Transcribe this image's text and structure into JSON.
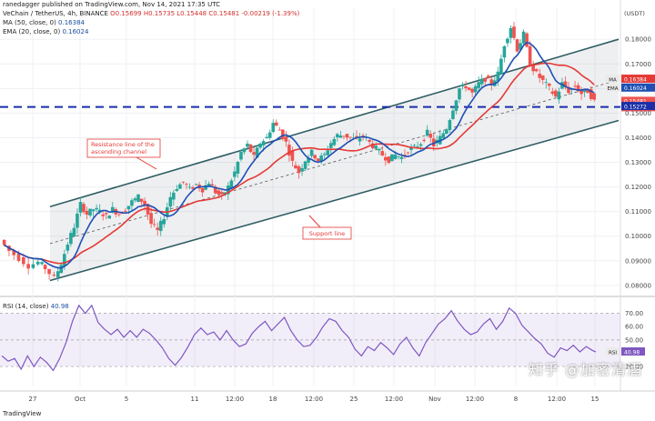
{
  "header": {
    "published_by": "ranedagger published on TradingView.com, Nov 14, 2021 17:35 UTC",
    "symbol_line": "VeChain / TetherUS, 4h, BINANCE",
    "ohlc": "O0.15699  H0.15735  L0.15448  C0.15481  -0.00219 (-1.39%)",
    "ma_label": "MA (50, close, 0)",
    "ma_value": "0.16384",
    "ema_label": "EMA (20, close, 0)",
    "ema_value": "0.16024",
    "rsi_label": "RSI (14, close)",
    "rsi_value": "40.98",
    "currency": "USDT"
  },
  "annotations": {
    "resistance": [
      "Resistance line of the",
      "ascending channel"
    ],
    "support": "Support line"
  },
  "watermark": "知乎 @加密清酒",
  "footer": "TradingView",
  "colors": {
    "up": "#26a69a",
    "down": "#ef5350",
    "ma": "#e53935",
    "ema": "#1e4fb4",
    "rsi": "#7e57c2",
    "channel": "#2f5d64",
    "level": "#1a2fa8",
    "annotation": "#e53935"
  },
  "chart_data": [
    {
      "type": "candlestick",
      "title": "VeChain / TetherUS, 4h, BINANCE",
      "x_tick_labels": [
        "27",
        "Oct",
        "5",
        "11",
        "12:00",
        "18",
        "12:00",
        "25",
        "12:00",
        "Nov",
        "12:00",
        "8",
        "12:00",
        "15"
      ],
      "y_tick_labels": [
        "0.18000",
        "0.17000",
        "0.16000",
        "0.15000",
        "0.14000",
        "0.13000",
        "0.12000",
        "0.11000",
        "0.10000",
        "0.09000",
        "0.08000"
      ],
      "ylim": [
        0.077,
        0.193
      ],
      "series": [
        {
          "name": "MA",
          "label": "MA (50, close, 0)",
          "last": 0.16384
        },
        {
          "name": "EMA",
          "label": "EMA (20, close, 0)",
          "last": 0.16024
        }
      ],
      "price_labels": [
        {
          "tag": "MA",
          "value": "0.16384"
        },
        {
          "tag": "EMA",
          "value": "0.16024"
        },
        {
          "tag": "",
          "value": "0.15481",
          "sub": "00:24:54"
        },
        {
          "tag": "",
          "value": "0.15272"
        }
      ],
      "horizontal_level": 0.1525,
      "channel": {
        "upper": [
          [
            0.0,
            0.112
          ],
          [
            1.0,
            0.18
          ]
        ],
        "lower": [
          [
            0.0,
            0.082
          ],
          [
            1.0,
            0.147
          ]
        ],
        "middle": [
          [
            0.0,
            0.097
          ],
          [
            1.0,
            0.1635
          ]
        ]
      },
      "candles_close_path": [
        [
          0.0,
          0.0985
        ],
        [
          0.03,
          0.094
        ],
        [
          0.06,
          0.091
        ],
        [
          0.09,
          0.088
        ],
        [
          0.12,
          0.0895
        ],
        [
          0.14,
          0.087
        ],
        [
          0.17,
          0.083
        ],
        [
          0.19,
          0.089
        ],
        [
          0.21,
          0.097
        ],
        [
          0.23,
          0.104
        ],
        [
          0.25,
          0.113
        ],
        [
          0.27,
          0.109
        ],
        [
          0.29,
          0.111
        ],
        [
          0.31,
          0.11
        ],
        [
          0.33,
          0.108
        ],
        [
          0.35,
          0.111
        ],
        [
          0.37,
          0.109
        ],
        [
          0.39,
          0.111
        ],
        [
          0.41,
          0.114
        ],
        [
          0.43,
          0.116
        ],
        [
          0.45,
          0.113
        ],
        [
          0.47,
          0.105
        ],
        [
          0.49,
          0.102
        ],
        [
          0.51,
          0.108
        ],
        [
          0.53,
          0.116
        ],
        [
          0.55,
          0.12
        ],
        [
          0.57,
          0.122
        ],
        [
          0.59,
          0.119
        ],
        [
          0.61,
          0.121
        ],
        [
          0.63,
          0.119
        ],
        [
          0.65,
          0.122
        ],
        [
          0.67,
          0.118
        ],
        [
          0.69,
          0.116
        ],
        [
          0.71,
          0.12
        ],
        [
          0.73,
          0.126
        ],
        [
          0.75,
          0.134
        ],
        [
          0.77,
          0.137
        ],
        [
          0.79,
          0.132
        ],
        [
          0.81,
          0.138
        ],
        [
          0.83,
          0.14
        ],
        [
          0.85,
          0.146
        ],
        [
          0.87,
          0.143
        ],
        [
          0.89,
          0.138
        ],
        [
          0.91,
          0.13
        ],
        [
          0.93,
          0.126
        ],
        [
          0.95,
          0.131
        ],
        [
          0.97,
          0.134
        ],
        [
          0.99,
          0.131
        ],
        [
          1.01,
          0.133
        ],
        [
          1.03,
          0.138
        ],
        [
          1.05,
          0.141
        ],
        [
          1.07,
          0.141
        ],
        [
          1.09,
          0.14
        ],
        [
          1.11,
          0.139
        ],
        [
          1.13,
          0.141
        ],
        [
          1.15,
          0.138
        ],
        [
          1.17,
          0.1355
        ],
        [
          1.19,
          0.133
        ],
        [
          1.21,
          0.131
        ],
        [
          1.23,
          0.133
        ],
        [
          1.25,
          0.132
        ],
        [
          1.27,
          0.135
        ],
        [
          1.29,
          0.136
        ],
        [
          1.31,
          0.138
        ],
        [
          1.33,
          0.142
        ],
        [
          1.35,
          0.137
        ],
        [
          1.37,
          0.14
        ],
        [
          1.39,
          0.144
        ],
        [
          1.41,
          0.152
        ],
        [
          1.43,
          0.16
        ],
        [
          1.45,
          0.161
        ],
        [
          1.47,
          0.158
        ],
        [
          1.49,
          0.162
        ],
        [
          1.51,
          0.164
        ],
        [
          1.53,
          0.162
        ],
        [
          1.55,
          0.166
        ],
        [
          1.57,
          0.178
        ],
        [
          1.59,
          0.185
        ],
        [
          1.61,
          0.176
        ],
        [
          1.63,
          0.182
        ],
        [
          1.65,
          0.17
        ],
        [
          1.67,
          0.166
        ],
        [
          1.69,
          0.163
        ],
        [
          1.71,
          0.16
        ],
        [
          1.73,
          0.1565
        ],
        [
          1.75,
          0.162
        ],
        [
          1.77,
          0.159
        ],
        [
          1.79,
          0.161
        ],
        [
          1.81,
          0.158
        ],
        [
          1.83,
          0.159
        ],
        [
          1.85,
          0.1548
        ]
      ],
      "x_span": 1.85
    },
    {
      "type": "line",
      "title": "RSI (14, close)",
      "series_name": "RSI",
      "y_tick_labels": [
        "70.00",
        "60.00",
        "50.00",
        "40.00",
        "30.00"
      ],
      "ylim": [
        15,
        80
      ],
      "band": [
        30,
        70
      ],
      "midline": 50,
      "last": 40.98,
      "points": [
        [
          0.0,
          38
        ],
        [
          0.02,
          34
        ],
        [
          0.04,
          36
        ],
        [
          0.06,
          28
        ],
        [
          0.08,
          38
        ],
        [
          0.1,
          30
        ],
        [
          0.12,
          37
        ],
        [
          0.14,
          33
        ],
        [
          0.16,
          27
        ],
        [
          0.18,
          36
        ],
        [
          0.2,
          48
        ],
        [
          0.22,
          64
        ],
        [
          0.24,
          76
        ],
        [
          0.26,
          70
        ],
        [
          0.28,
          76
        ],
        [
          0.3,
          63
        ],
        [
          0.32,
          58
        ],
        [
          0.34,
          54
        ],
        [
          0.36,
          58
        ],
        [
          0.38,
          52
        ],
        [
          0.4,
          57
        ],
        [
          0.42,
          52
        ],
        [
          0.44,
          58
        ],
        [
          0.46,
          55
        ],
        [
          0.48,
          50
        ],
        [
          0.5,
          44
        ],
        [
          0.52,
          36
        ],
        [
          0.54,
          31
        ],
        [
          0.56,
          37
        ],
        [
          0.58,
          45
        ],
        [
          0.6,
          54
        ],
        [
          0.62,
          59
        ],
        [
          0.64,
          54
        ],
        [
          0.66,
          56
        ],
        [
          0.68,
          50
        ],
        [
          0.7,
          57
        ],
        [
          0.72,
          50
        ],
        [
          0.74,
          45
        ],
        [
          0.76,
          47
        ],
        [
          0.78,
          55
        ],
        [
          0.8,
          60
        ],
        [
          0.82,
          64
        ],
        [
          0.84,
          57
        ],
        [
          0.86,
          62
        ],
        [
          0.88,
          67
        ],
        [
          0.9,
          57
        ],
        [
          0.92,
          50
        ],
        [
          0.94,
          45
        ],
        [
          0.96,
          46
        ],
        [
          0.98,
          52
        ],
        [
          1.0,
          60
        ],
        [
          1.02,
          66
        ],
        [
          1.04,
          64
        ],
        [
          1.06,
          57
        ],
        [
          1.08,
          52
        ],
        [
          1.1,
          43
        ],
        [
          1.12,
          38
        ],
        [
          1.14,
          45
        ],
        [
          1.16,
          42
        ],
        [
          1.18,
          48
        ],
        [
          1.2,
          44
        ],
        [
          1.22,
          39
        ],
        [
          1.24,
          47
        ],
        [
          1.26,
          52
        ],
        [
          1.28,
          44
        ],
        [
          1.3,
          38
        ],
        [
          1.32,
          48
        ],
        [
          1.34,
          55
        ],
        [
          1.36,
          62
        ],
        [
          1.38,
          66
        ],
        [
          1.4,
          72
        ],
        [
          1.42,
          64
        ],
        [
          1.44,
          58
        ],
        [
          1.46,
          54
        ],
        [
          1.48,
          56
        ],
        [
          1.5,
          62
        ],
        [
          1.52,
          66
        ],
        [
          1.54,
          58
        ],
        [
          1.56,
          64
        ],
        [
          1.58,
          74
        ],
        [
          1.6,
          70
        ],
        [
          1.62,
          61
        ],
        [
          1.64,
          56
        ],
        [
          1.66,
          51
        ],
        [
          1.68,
          47
        ],
        [
          1.7,
          40
        ],
        [
          1.72,
          37
        ],
        [
          1.74,
          44
        ],
        [
          1.76,
          42
        ],
        [
          1.78,
          46
        ],
        [
          1.8,
          41
        ],
        [
          1.82,
          45
        ],
        [
          1.84,
          42
        ],
        [
          1.85,
          40.98
        ]
      ],
      "x_span": 1.85
    }
  ]
}
